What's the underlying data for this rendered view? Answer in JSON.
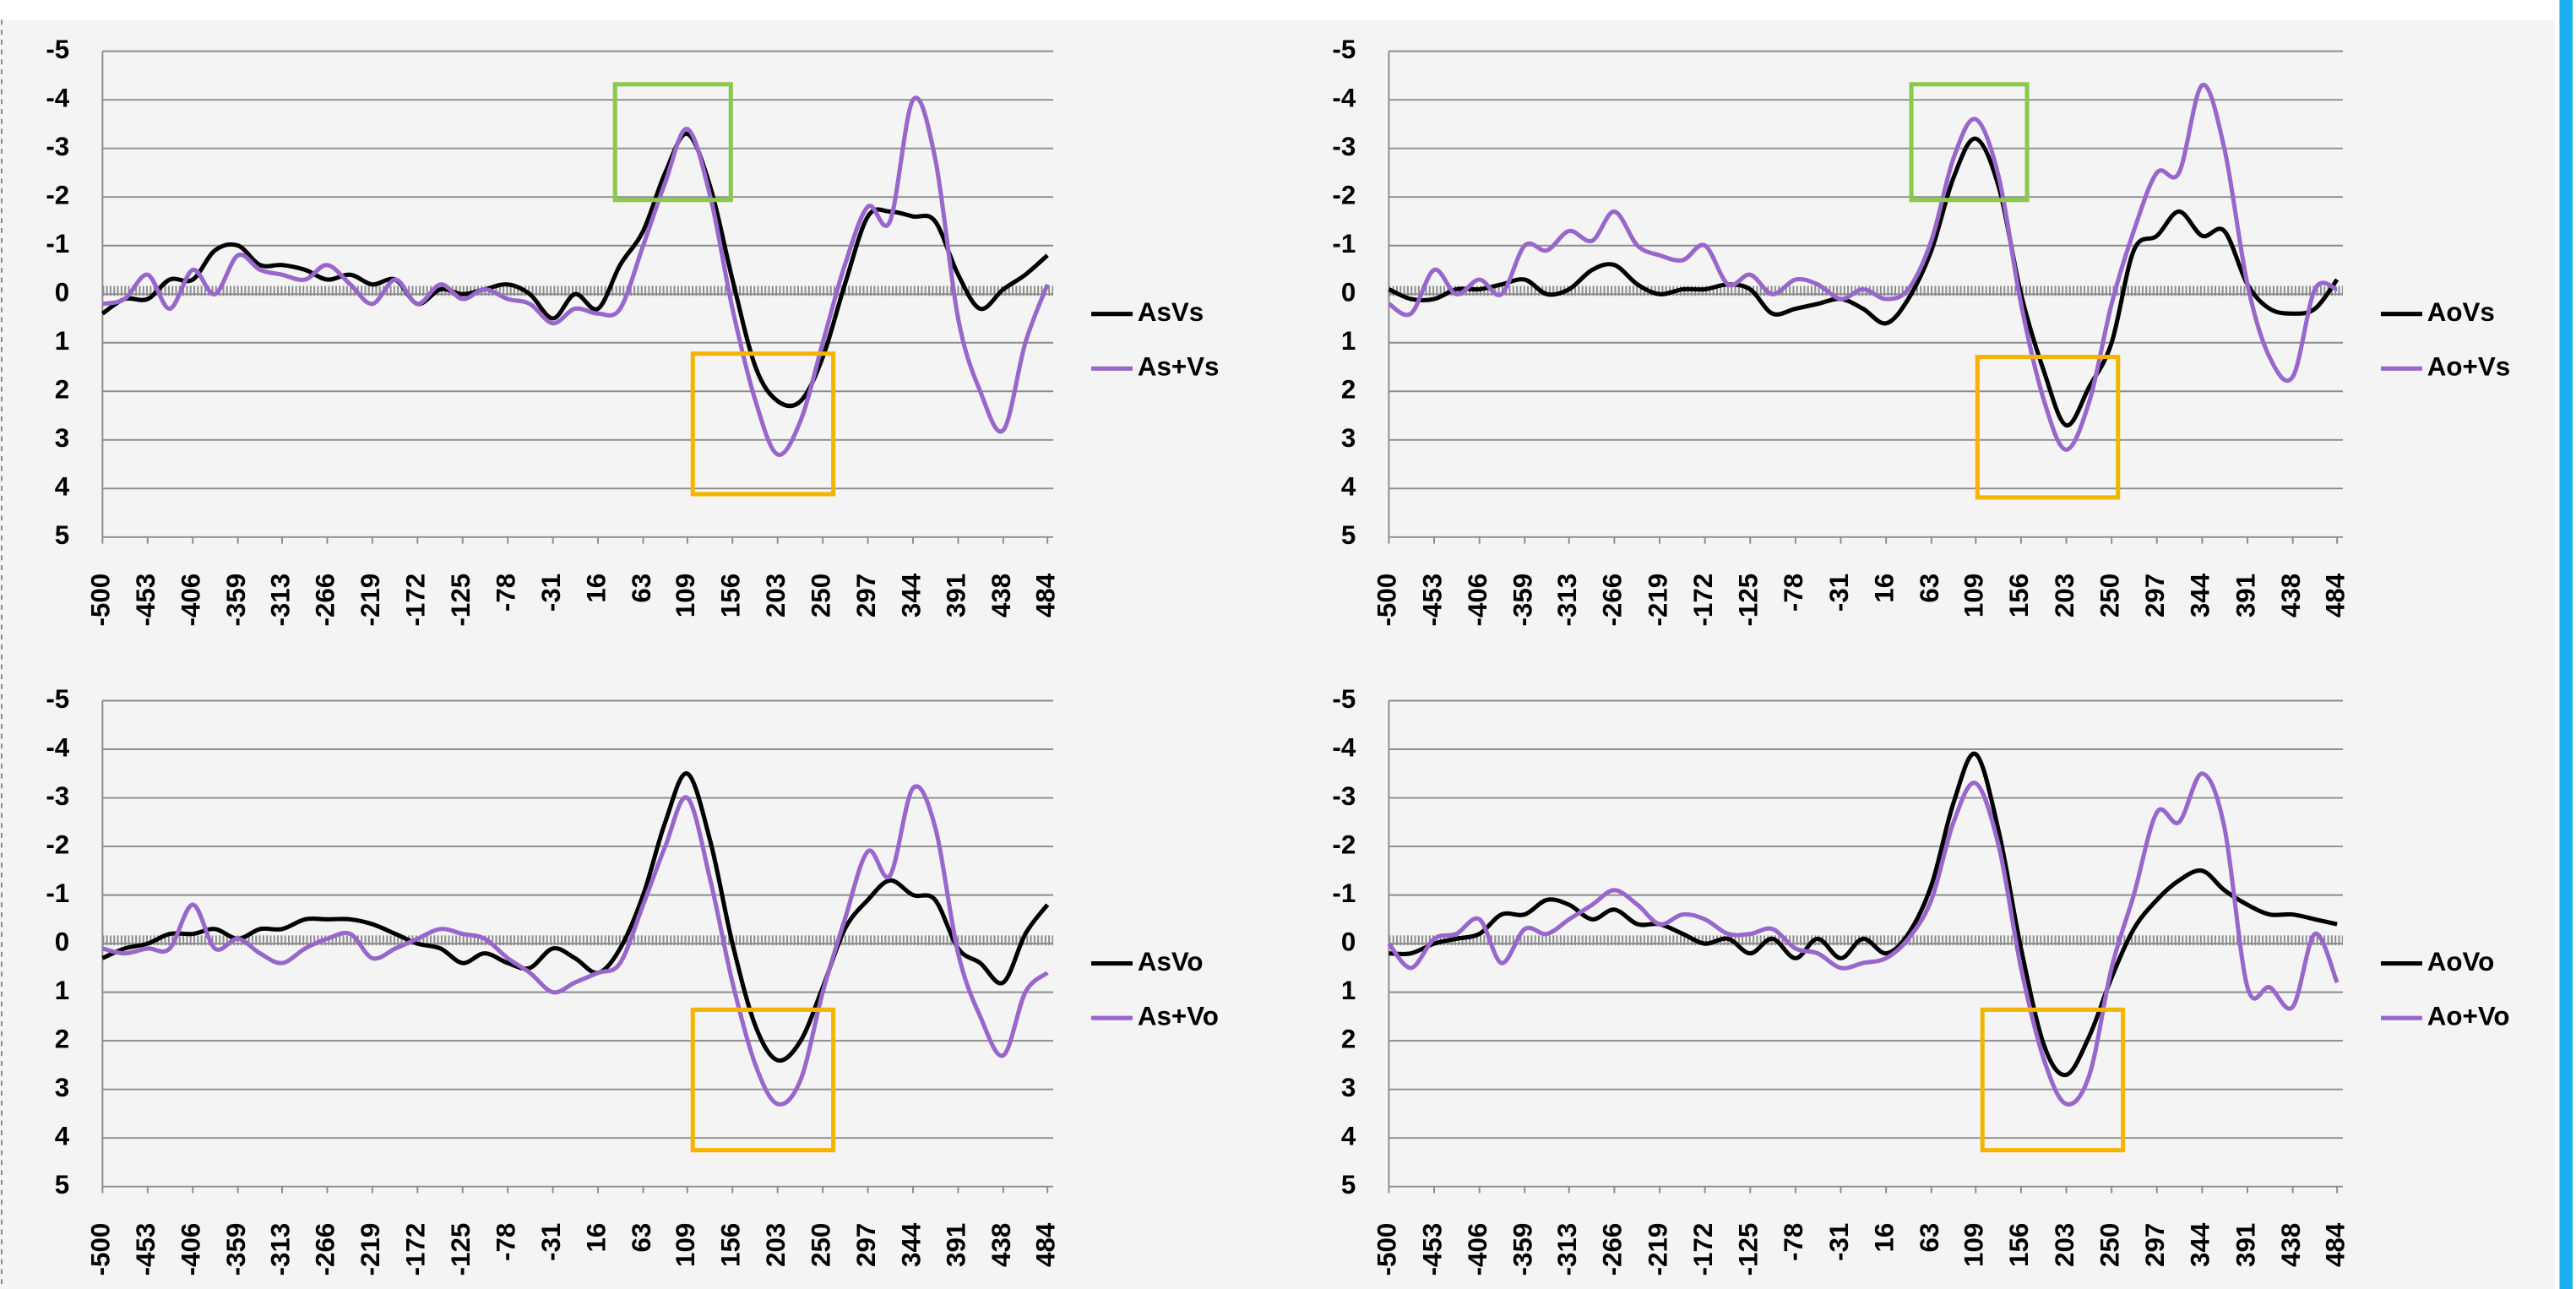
{
  "chart_data": [
    {
      "type": "line",
      "y_reversed": true,
      "grid": true,
      "ylim": [
        -5,
        5
      ],
      "yticks": [
        -5,
        -4,
        -3,
        -2,
        -1,
        0,
        1,
        2,
        3,
        4,
        5
      ],
      "xlim": [
        -500,
        490
      ],
      "xticks": [
        -500,
        -453,
        -406,
        -359,
        -313,
        -266,
        -219,
        -172,
        -125,
        -78,
        -31,
        16,
        63,
        109,
        156,
        203,
        250,
        297,
        344,
        391,
        438,
        484
      ],
      "x": [
        -500,
        -477,
        -453,
        -430,
        -406,
        -383,
        -359,
        -336,
        -313,
        -289,
        -266,
        -242,
        -219,
        -195,
        -172,
        -148,
        -125,
        -102,
        -78,
        -55,
        -31,
        -8,
        16,
        39,
        63,
        86,
        109,
        133,
        156,
        180,
        203,
        227,
        250,
        273,
        297,
        320,
        344,
        367,
        391,
        414,
        438,
        461,
        484
      ],
      "series": [
        {
          "name": "AsVs",
          "color": "#000000",
          "values": [
            0.4,
            0.1,
            0.1,
            -0.3,
            -0.3,
            -0.9,
            -1.0,
            -0.6,
            -0.6,
            -0.5,
            -0.3,
            -0.4,
            -0.2,
            -0.3,
            0.2,
            -0.1,
            0,
            -0.1,
            -0.2,
            0,
            0.5,
            0.0,
            0.3,
            -0.6,
            -1.3,
            -2.5,
            -3.3,
            -2.2,
            -0.3,
            1.5,
            2.2,
            2.2,
            1.3,
            -0.2,
            -1.6,
            -1.7,
            -1.6,
            -1.5,
            -0.4,
            0.3,
            -0.1,
            -0.4,
            -0.8
          ]
        },
        {
          "name": "As+Vs",
          "color": "#9966cc",
          "values": [
            0.2,
            0.1,
            -0.4,
            0.3,
            -0.5,
            0,
            -0.8,
            -0.5,
            -0.4,
            -0.3,
            -0.6,
            -0.2,
            0.2,
            -0.3,
            0.2,
            -0.2,
            0.1,
            -0.1,
            0.1,
            0.2,
            0.6,
            0.3,
            0.4,
            0.3,
            -1.0,
            -2.3,
            -3.4,
            -2.0,
            0.3,
            2.2,
            3.3,
            2.6,
            1.0,
            -0.6,
            -1.8,
            -1.5,
            -4.0,
            -2.8,
            0.5,
            2.0,
            2.8,
            1.0,
            -0.2
          ]
        }
      ]
    },
    {
      "type": "line",
      "y_reversed": true,
      "grid": true,
      "ylim": [
        -5,
        5
      ],
      "yticks": [
        -5,
        -4,
        -3,
        -2,
        -1,
        0,
        1,
        2,
        3,
        4,
        5
      ],
      "xlim": [
        -500,
        490
      ],
      "xticks": [
        -500,
        -453,
        -406,
        -359,
        -313,
        -266,
        -219,
        -172,
        -125,
        -78,
        -31,
        16,
        63,
        109,
        156,
        203,
        250,
        297,
        344,
        391,
        438,
        484
      ],
      "x": [
        -500,
        -477,
        -453,
        -430,
        -406,
        -383,
        -359,
        -336,
        -313,
        -289,
        -266,
        -242,
        -219,
        -195,
        -172,
        -148,
        -125,
        -102,
        -78,
        -55,
        -31,
        -8,
        16,
        39,
        63,
        86,
        109,
        133,
        156,
        180,
        203,
        227,
        250,
        273,
        297,
        320,
        344,
        367,
        391,
        414,
        438,
        461,
        484
      ],
      "series": [
        {
          "name": "AoVs",
          "color": "#000000",
          "values": [
            -0.1,
            0.1,
            0.1,
            -0.1,
            -0.1,
            -0.2,
            -0.3,
            0,
            -0.1,
            -0.5,
            -0.6,
            -0.2,
            0,
            -0.1,
            -0.1,
            -0.2,
            -0.1,
            0.4,
            0.3,
            0.2,
            0.1,
            0.3,
            0.6,
            0.1,
            -0.9,
            -2.4,
            -3.2,
            -2.2,
            0.0,
            1.6,
            2.7,
            1.9,
            1.0,
            -0.9,
            -1.2,
            -1.7,
            -1.2,
            -1.3,
            -0.2,
            0.3,
            0.4,
            0.3,
            -0.3
          ]
        },
        {
          "name": "Ao+Vs",
          "color": "#9966cc",
          "values": [
            0.2,
            0.4,
            -0.5,
            0,
            -0.3,
            0,
            -1.0,
            -0.9,
            -1.3,
            -1.1,
            -1.7,
            -1.0,
            -0.8,
            -0.7,
            -1.0,
            -0.2,
            -0.4,
            0,
            -0.3,
            -0.2,
            0.1,
            -0.1,
            0.1,
            -0.1,
            -1.1,
            -2.8,
            -3.6,
            -2.4,
            0.2,
            2.2,
            3.2,
            2.2,
            0.2,
            -1.3,
            -2.5,
            -2.5,
            -4.3,
            -3.0,
            -0.2,
            1.3,
            1.7,
            -0.1,
            -0.1
          ]
        }
      ]
    },
    {
      "type": "line",
      "y_reversed": true,
      "grid": true,
      "ylim": [
        -5,
        5
      ],
      "yticks": [
        -5,
        -4,
        -3,
        -2,
        -1,
        0,
        1,
        2,
        3,
        4,
        5
      ],
      "xlim": [
        -500,
        490
      ],
      "xticks": [
        -500,
        -453,
        -406,
        -359,
        -313,
        -266,
        -219,
        -172,
        -125,
        -78,
        -31,
        16,
        63,
        109,
        156,
        203,
        250,
        297,
        344,
        391,
        438,
        484
      ],
      "x": [
        -500,
        -477,
        -453,
        -430,
        -406,
        -383,
        -359,
        -336,
        -313,
        -289,
        -266,
        -242,
        -219,
        -195,
        -172,
        -148,
        -125,
        -102,
        -78,
        -55,
        -31,
        -8,
        16,
        39,
        63,
        86,
        109,
        133,
        156,
        180,
        203,
        227,
        250,
        273,
        297,
        320,
        344,
        367,
        391,
        414,
        438,
        461,
        484
      ],
      "series": [
        {
          "name": "AsVo",
          "color": "#000000",
          "values": [
            0.3,
            0.1,
            0,
            -0.2,
            -0.2,
            -0.3,
            -0.1,
            -0.3,
            -0.3,
            -0.5,
            -0.5,
            -0.5,
            -0.4,
            -0.2,
            0,
            0.1,
            0.4,
            0.2,
            0.4,
            0.5,
            0.1,
            0.3,
            0.6,
            0.1,
            -1.0,
            -2.5,
            -3.5,
            -2.1,
            0.0,
            1.7,
            2.4,
            2.0,
            0.9,
            -0.3,
            -0.9,
            -1.3,
            -1.0,
            -0.9,
            0.1,
            0.4,
            0.8,
            -0.2,
            -0.8
          ]
        },
        {
          "name": "As+Vo",
          "color": "#9966cc",
          "values": [
            0.1,
            0.2,
            0.1,
            0.1,
            -0.8,
            0.1,
            -0.1,
            0.2,
            0.4,
            0.1,
            -0.1,
            -0.2,
            0.3,
            0.1,
            -0.1,
            -0.3,
            -0.2,
            -0.1,
            0.3,
            0.6,
            1.0,
            0.8,
            0.6,
            0.4,
            -0.8,
            -2.0,
            -3.0,
            -1.3,
            0.8,
            2.5,
            3.3,
            2.8,
            1.0,
            -0.5,
            -1.9,
            -1.4,
            -3.2,
            -2.4,
            0.2,
            1.5,
            2.3,
            1.0,
            0.6
          ]
        }
      ]
    },
    {
      "type": "line",
      "y_reversed": true,
      "grid": true,
      "ylim": [
        -5,
        5
      ],
      "yticks": [
        -5,
        -4,
        -3,
        -2,
        -1,
        0,
        1,
        2,
        3,
        4,
        5
      ],
      "xlim": [
        -500,
        490
      ],
      "xticks": [
        -500,
        -453,
        -406,
        -359,
        -313,
        -266,
        -219,
        -172,
        -125,
        -78,
        -31,
        16,
        63,
        109,
        156,
        203,
        250,
        297,
        344,
        391,
        438,
        484
      ],
      "x": [
        -500,
        -477,
        -453,
        -430,
        -406,
        -383,
        -359,
        -336,
        -313,
        -289,
        -266,
        -242,
        -219,
        -195,
        -172,
        -148,
        -125,
        -102,
        -78,
        -55,
        -31,
        -8,
        16,
        39,
        63,
        86,
        109,
        133,
        156,
        180,
        203,
        227,
        250,
        273,
        297,
        320,
        344,
        367,
        391,
        414,
        438,
        461,
        484
      ],
      "series": [
        {
          "name": "AoVo",
          "color": "#000000",
          "values": [
            0.2,
            0.2,
            0,
            -0.1,
            -0.2,
            -0.6,
            -0.6,
            -0.9,
            -0.8,
            -0.5,
            -0.7,
            -0.4,
            -0.4,
            -0.2,
            0,
            -0.1,
            0.2,
            -0.1,
            0.3,
            -0.1,
            0.3,
            -0.1,
            0.2,
            -0.2,
            -1.2,
            -2.9,
            -3.9,
            -2.3,
            0.1,
            2.1,
            2.7,
            1.9,
            0.7,
            -0.3,
            -0.9,
            -1.3,
            -1.5,
            -1.1,
            -0.8,
            -0.6,
            -0.6,
            -0.5,
            -0.4
          ]
        },
        {
          "name": "Ao+Vo",
          "color": "#9966cc",
          "values": [
            0,
            0.5,
            -0.1,
            -0.2,
            -0.5,
            0.4,
            -0.3,
            -0.2,
            -0.5,
            -0.8,
            -1.1,
            -0.8,
            -0.4,
            -0.6,
            -0.5,
            -0.2,
            -0.2,
            -0.3,
            0.1,
            0.2,
            0.5,
            0.4,
            0.3,
            -0.1,
            -0.9,
            -2.5,
            -3.3,
            -2.0,
            0.5,
            2.4,
            3.3,
            2.7,
            0.5,
            -1.0,
            -2.7,
            -2.5,
            -3.5,
            -2.4,
            0.9,
            0.9,
            1.3,
            -0.2,
            0.8
          ]
        }
      ]
    }
  ]
}
